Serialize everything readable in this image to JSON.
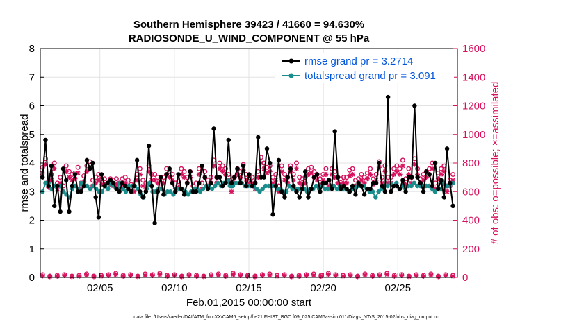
{
  "chart_data": {
    "type": "line",
    "title_line1": "Southern Hemisphere 39423 / 41660 = 94.630%",
    "title_line2": "RADIOSONDE_U_WIND_COMPONENT @ 55 hPa",
    "xlabel": "Feb.01,2015 00:00:00 start",
    "ylabel_left": "rmse and totalspread",
    "ylabel_right": "# of obs: o=possible; ×=assimilated",
    "xlim": [
      1.0,
      29.0
    ],
    "ylim_left": [
      0,
      8
    ],
    "ylim_right": [
      0,
      1600
    ],
    "x_tick_values": [
      5,
      10,
      15,
      20,
      25
    ],
    "x_tick_labels": [
      "02/05",
      "02/10",
      "02/15",
      "02/20",
      "02/25"
    ],
    "y_left_ticks": [
      "0",
      "1",
      "2",
      "3",
      "4",
      "5",
      "6",
      "7",
      "8"
    ],
    "y_right_ticks": [
      "0",
      "200",
      "400",
      "600",
      "800",
      "1000",
      "1200",
      "1400",
      "1600"
    ],
    "grid": true,
    "legend_position": "top-right",
    "footnote": "data file: /Users/raeder/DAI/ATM_forcXX/CAM6_setup/f.e21.FHIST_BGC.f09_025.CAM6assim.011/Diags_NTrS_2015-02/obs_diag_output.nc",
    "colors": {
      "rmse": "#000000",
      "spread": "#1a8c8c",
      "obs": "#d6125e",
      "legend_text": "#0055dd",
      "right_axis": "#d6125e"
    },
    "series": [
      {
        "name": "rmse grand pr = 3.2714",
        "values": [
          3.5,
          4.8,
          3.2,
          3.9,
          2.5,
          3.2,
          2.3,
          3.8,
          3.4,
          2.3,
          3.2,
          3.6,
          3.0,
          3.0,
          3.2,
          4.1,
          3.8,
          4.0,
          2.8,
          2.1,
          3.6,
          3.2,
          3.3,
          3.4,
          3.3,
          3.1,
          3.0,
          3.3,
          3.2,
          3.1,
          3.0,
          3.2,
          4.1,
          3.0,
          2.8,
          3.0,
          4.6,
          3.2,
          1.9,
          3.0,
          3.5,
          2.9,
          3.6,
          3.8,
          3.3,
          3.0,
          3.6,
          3.1,
          2.9,
          3.3,
          3.7,
          3.0,
          3.0,
          3.3,
          3.9,
          3.5,
          3.1,
          3.3,
          5.2,
          3.5,
          3.5,
          3.2,
          3.3,
          4.8,
          3.3,
          3.5,
          3.8,
          3.3,
          3.9,
          3.2,
          3.6,
          3.2,
          3.3,
          4.9,
          3.5,
          3.5,
          4.5,
          4.0,
          2.2,
          3.2,
          4.1,
          3.0,
          2.8,
          3.5,
          3.8,
          3.2,
          3.0,
          2.8,
          3.1,
          3.7,
          2.8,
          3.1,
          3.5,
          3.6,
          3.0,
          3.3,
          3.3,
          3.4,
          3.1,
          5.1,
          3.5,
          3.1,
          3.2,
          3.1,
          3.0,
          3.2,
          2.9,
          3.3,
          3.2,
          2.9,
          3.1,
          3.1,
          3.3,
          3.3,
          4.0,
          3.2,
          3.0,
          6.3,
          3.0,
          3.2,
          3.2,
          3.1,
          3.4,
          3.0,
          3.5,
          3.5,
          6.0,
          3.5,
          3.3,
          3.0,
          3.7,
          3.6,
          3.2,
          4.0,
          3.1,
          3.4,
          2.8,
          4.5,
          3.3,
          2.5
        ]
      },
      {
        "name": "totalspread grand pr = 3.091",
        "values": [
          3.0,
          3.3,
          3.3,
          3.1,
          3.2,
          3.2,
          3.2,
          3.0,
          2.9,
          2.8,
          3.1,
          3.2,
          3.1,
          3.3,
          3.2,
          3.2,
          3.1,
          3.2,
          3.1,
          3.0,
          3.0,
          3.2,
          3.1,
          3.3,
          3.2,
          3.1,
          3.3,
          3.1,
          3.0,
          3.2,
          3.2,
          3.2,
          3.1,
          2.9,
          2.8,
          3.1,
          3.3,
          3.0,
          3.0,
          3.1,
          3.1,
          2.9,
          3.0,
          3.0,
          2.9,
          3.1,
          3.1,
          3.1,
          3.0,
          2.9,
          3.0,
          3.1,
          3.1,
          3.0,
          3.1,
          3.2,
          3.2,
          3.1,
          3.2,
          3.3,
          3.2,
          3.3,
          3.4,
          3.2,
          3.2,
          3.3,
          3.3,
          3.3,
          3.2,
          3.2,
          3.2,
          3.2,
          3.1,
          3.0,
          3.1,
          3.2,
          3.2,
          3.2,
          3.2,
          3.1,
          3.1,
          3.0,
          3.0,
          3.2,
          3.1,
          3.1,
          3.1,
          3.1,
          3.1,
          3.0,
          3.1,
          3.1,
          3.2,
          3.1,
          3.2,
          3.1,
          3.1,
          3.2,
          3.2,
          3.1,
          3.2,
          3.1,
          3.1,
          3.0,
          3.1,
          3.1,
          3.2,
          3.2,
          3.2,
          3.1,
          3.0,
          3.0,
          2.8,
          3.0,
          3.1,
          3.2,
          3.2,
          3.3,
          3.2,
          3.3,
          3.1,
          3.2,
          3.1,
          3.2,
          3.2,
          3.3,
          3.2,
          3.2,
          3.2,
          3.2,
          3.2,
          3.1,
          3.0,
          3.1,
          3.1,
          3.3,
          3.2,
          3.2,
          3.3
        ]
      },
      {
        "name": "obs possible (o)",
        "axis": "right",
        "values": [
          770,
          830,
          670,
          720,
          800,
          660,
          700,
          640,
          780,
          740,
          720,
          730,
          770,
          660,
          710,
          780,
          810,
          680,
          700,
          720,
          690,
          690,
          660,
          690,
          680,
          690,
          660,
          690,
          700,
          680,
          650,
          640,
          720,
          760,
          680,
          660,
          780,
          720,
          720,
          700,
          660,
          700,
          760,
          740,
          720,
          660,
          670,
          760,
          740,
          700,
          740,
          640,
          660,
          760,
          660,
          740,
          680,
          700,
          820,
          700,
          800,
          780,
          760,
          720,
          640,
          700,
          760,
          740,
          790,
          720,
          700,
          700,
          660,
          740,
          840,
          800,
          770,
          780,
          700,
          720,
          640,
          780,
          720,
          700,
          780,
          720,
          800,
          700,
          690,
          700,
          760,
          770,
          740,
          720,
          690,
          720,
          760,
          680,
          760,
          740,
          700,
          690,
          700,
          700,
          750,
          760,
          680,
          690,
          720,
          700,
          730,
          760,
          690,
          720,
          810,
          700,
          780,
          700,
          700,
          760,
          780,
          760,
          820,
          690,
          760,
          700,
          830,
          760,
          690,
          720,
          740,
          760,
          800,
          660,
          730,
          760,
          780,
          640,
          680,
          720
        ]
      },
      {
        "name": "obs assimilated (×)",
        "axis": "right",
        "values": [
          730,
          790,
          630,
          680,
          760,
          620,
          660,
          600,
          740,
          700,
          680,
          690,
          730,
          620,
          670,
          740,
          770,
          640,
          660,
          680,
          650,
          650,
          620,
          650,
          640,
          650,
          620,
          650,
          660,
          640,
          610,
          600,
          680,
          720,
          640,
          620,
          740,
          680,
          680,
          660,
          620,
          660,
          720,
          700,
          680,
          620,
          630,
          720,
          700,
          660,
          700,
          600,
          620,
          720,
          620,
          700,
          640,
          660,
          780,
          660,
          760,
          740,
          720,
          680,
          600,
          660,
          720,
          700,
          750,
          680,
          660,
          660,
          620,
          700,
          800,
          760,
          730,
          740,
          660,
          680,
          600,
          740,
          680,
          660,
          740,
          680,
          760,
          660,
          650,
          660,
          720,
          730,
          700,
          680,
          650,
          680,
          720,
          640,
          720,
          700,
          660,
          650,
          660,
          660,
          710,
          720,
          640,
          650,
          680,
          660,
          690,
          720,
          650,
          680,
          770,
          660,
          740,
          660,
          660,
          720,
          740,
          720,
          780,
          650,
          720,
          660,
          790,
          720,
          650,
          680,
          700,
          720,
          760,
          620,
          690,
          720,
          740,
          600,
          640,
          680
        ]
      },
      {
        "name": "obs possible bottom (o)",
        "axis": "right",
        "values": [
          20,
          10,
          15,
          20,
          10,
          15,
          25,
          10,
          15,
          20,
          30,
          15,
          20,
          10,
          25,
          20,
          30,
          15,
          20,
          10,
          20,
          15,
          10,
          20,
          25,
          15,
          30,
          20,
          15,
          10,
          20,
          25,
          15,
          20,
          10,
          15,
          20,
          25,
          15,
          30,
          20,
          15,
          20,
          10,
          25,
          15,
          20,
          30,
          15,
          20,
          10,
          20,
          15,
          25,
          10,
          20,
          15
        ]
      },
      {
        "name": "obs assimilated bottom (×)",
        "axis": "right",
        "values": [
          10,
          5,
          8,
          12,
          5,
          8,
          15,
          5,
          8,
          12,
          20,
          8,
          12,
          5,
          15,
          12,
          20,
          8,
          12,
          5,
          12,
          8,
          5,
          12,
          15,
          8,
          20,
          12,
          8,
          5,
          12,
          15,
          8,
          12,
          5,
          8,
          12,
          15,
          8,
          20,
          12,
          8,
          12,
          5,
          15,
          8,
          12,
          20,
          8,
          12,
          5,
          12,
          8,
          15,
          5,
          12,
          8
        ]
      }
    ]
  }
}
